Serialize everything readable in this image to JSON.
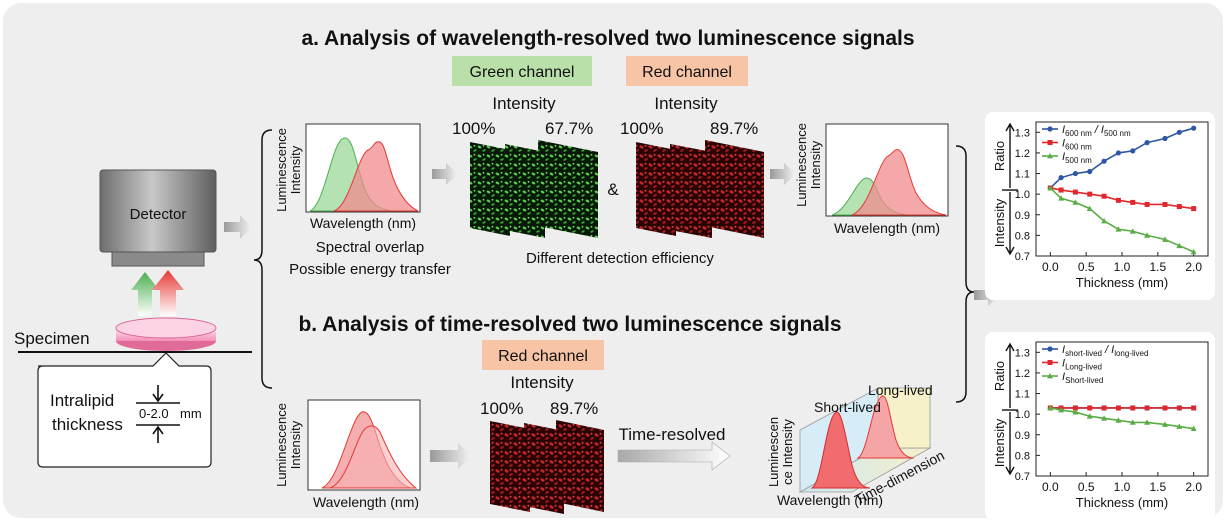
{
  "panel_a": {
    "title": "a. Analysis of wavelength-resolved two luminescence signals",
    "green_channel": "Green channel",
    "red_channel": "Red channel",
    "intensity_label": "Intensity",
    "green_pct_start": "100%",
    "green_pct_end": "67.7%",
    "red_pct_start": "100%",
    "red_pct_end": "89.7%",
    "ampersand": "&",
    "spectral_overlap": "Spectral overlap",
    "energy_transfer": "Possible energy transfer",
    "detection_efficiency": "Different detection efficiency"
  },
  "panel_b": {
    "title": "b. Analysis of time-resolved two luminescence signals",
    "red_channel": "Red channel",
    "intensity_label": "Intensity",
    "pct_start": "100%",
    "pct_end": "89.7%",
    "time_resolved": "Time-resolved",
    "short_lived": "Short-lived",
    "long_lived": "Long-lived",
    "lum_intensity_line1": "Luminescen",
    "lum_intensity_line2": "ce Intensity",
    "time_dimension": "Time-dimension",
    "wavelength_nm": "Wavelength (nm)"
  },
  "setup": {
    "detector": "Detector",
    "specimen": "Specimen",
    "intralipid": "Intralipid",
    "thickness": "thickness",
    "range": "0-2.0",
    "unit": "mm"
  },
  "spectrum_axes": {
    "ylabel_line1": "Luminescence",
    "ylabel_line2": "Intensity",
    "xlabel": "Wavelength (nm)"
  },
  "colors": {
    "green": "#5cb85c",
    "red": "#e8474a",
    "green_label_bg": "#b8e0a8",
    "red_label_bg": "#f7c4a6",
    "panel_bg": "#eeeeee",
    "series_blue": "#2f55a5",
    "series_red": "#e0282c",
    "series_green": "#5aac45"
  },
  "chart_data": [
    {
      "type": "line",
      "xlabel": "Thickness (mm)",
      "ylabel_top": "Ratio",
      "ylabel_bottom": "Intensity",
      "xlim": [
        -0.2,
        2.2
      ],
      "ylim": [
        0.7,
        1.35
      ],
      "xticks": [
        "0.0",
        "0.5",
        "1.0",
        "1.5",
        "2.0"
      ],
      "yticks": [
        "0.7",
        "0.8",
        "0.9",
        "1.0",
        "1.1",
        "1.2",
        "1.3"
      ],
      "legend_position": "top-left",
      "x": [
        0.0,
        0.15,
        0.35,
        0.55,
        0.75,
        0.95,
        1.15,
        1.35,
        1.6,
        1.8,
        2.0
      ],
      "series": [
        {
          "name": "I600 nm / I500 nm",
          "name_main": "I",
          "name_sub": "600 nm",
          "name_mid": " / I",
          "name_sub2": "500 nm",
          "color": "#2f55a5",
          "marker": "circle",
          "values": [
            1.03,
            1.08,
            1.1,
            1.11,
            1.16,
            1.2,
            1.21,
            1.25,
            1.27,
            1.3,
            1.32
          ]
        },
        {
          "name": "I600 nm",
          "name_main": "I",
          "name_sub": "600 nm",
          "color": "#e0282c",
          "marker": "square",
          "values": [
            1.03,
            1.02,
            1.01,
            1.0,
            0.99,
            0.97,
            0.96,
            0.95,
            0.95,
            0.94,
            0.93
          ]
        },
        {
          "name": "I500 nm",
          "name_main": "I",
          "name_sub": "500 nm",
          "color": "#5aac45",
          "marker": "triangle",
          "values": [
            1.03,
            0.98,
            0.96,
            0.93,
            0.87,
            0.83,
            0.82,
            0.8,
            0.78,
            0.75,
            0.72
          ]
        }
      ]
    },
    {
      "type": "line",
      "xlabel": "Thickness (mm)",
      "ylabel_top": "Ratio",
      "ylabel_bottom": "Intensity",
      "xlim": [
        -0.2,
        2.2
      ],
      "ylim": [
        0.7,
        1.35
      ],
      "xticks": [
        "0.0",
        "0.5",
        "1.0",
        "1.5",
        "2.0"
      ],
      "yticks": [
        "0.7",
        "0.8",
        "0.9",
        "1.0",
        "1.1",
        "1.2",
        "1.3"
      ],
      "legend_position": "top-left",
      "x": [
        0.0,
        0.15,
        0.35,
        0.55,
        0.75,
        0.95,
        1.15,
        1.35,
        1.6,
        1.8,
        2.0
      ],
      "series": [
        {
          "name": "Ishort-lived / Ilong-lived",
          "name_main": "I",
          "name_sub": "short-lived",
          "name_mid": " / I",
          "name_sub2": "long-lived",
          "color": "#2f55a5",
          "marker": "circle",
          "values": [
            1.03,
            1.03,
            1.03,
            1.03,
            1.03,
            1.03,
            1.03,
            1.03,
            1.03,
            1.03,
            1.03
          ]
        },
        {
          "name": "ILong-lived",
          "name_main": "I",
          "name_sub": "Long-lived",
          "color": "#e0282c",
          "marker": "square",
          "values": [
            1.03,
            1.03,
            1.03,
            1.03,
            1.03,
            1.03,
            1.03,
            1.03,
            1.03,
            1.03,
            1.03
          ]
        },
        {
          "name": "IShort-lived",
          "name_main": "I",
          "name_sub": "Short-lived",
          "color": "#5aac45",
          "marker": "triangle",
          "values": [
            1.03,
            1.02,
            1.01,
            0.99,
            0.98,
            0.97,
            0.96,
            0.96,
            0.95,
            0.94,
            0.93
          ]
        }
      ]
    }
  ]
}
